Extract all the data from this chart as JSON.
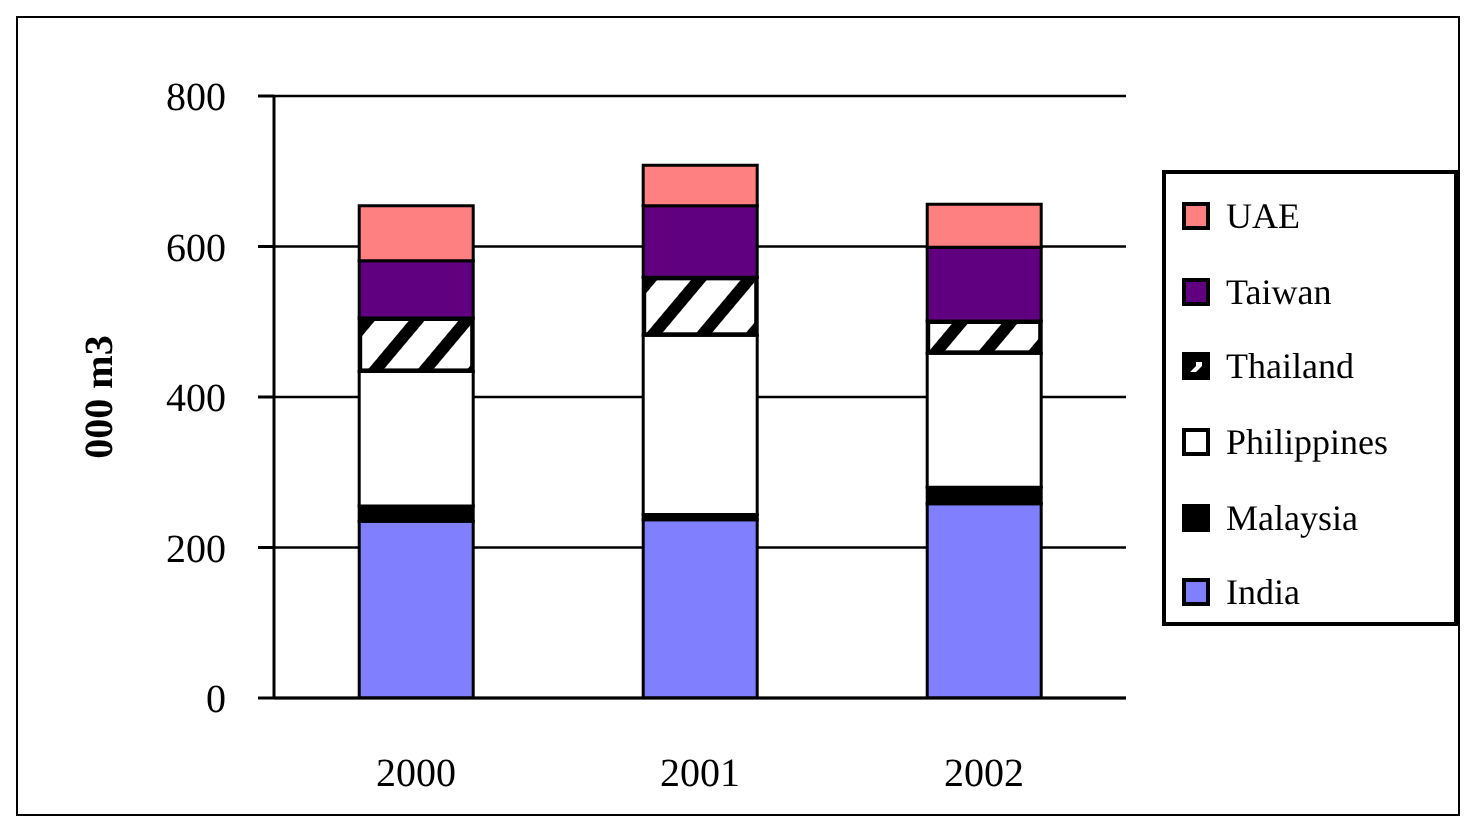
{
  "chart_data": {
    "type": "bar",
    "stacked": true,
    "categories": [
      "2000",
      "2001",
      "2002"
    ],
    "ylabel": "000 m3",
    "series": [
      {
        "name": "India",
        "color": "#8080ff",
        "values": [
          235,
          237,
          258
        ]
      },
      {
        "name": "Malaysia",
        "color": "#000000",
        "values": [
          20,
          7,
          22
        ]
      },
      {
        "name": "Philippines",
        "color": "#ffffff",
        "values": [
          179,
          238,
          178
        ]
      },
      {
        "name": "Thailand",
        "color": "#000000",
        "values": [
          71,
          77,
          43
        ]
      },
      {
        "name": "Taiwan",
        "color": "#600080",
        "values": [
          76,
          95,
          98
        ]
      },
      {
        "name": "UAE",
        "color": "#ff8080",
        "values": [
          73,
          54,
          57
        ]
      }
    ],
    "ylim": [
      0,
      800
    ],
    "yticks": [
      0,
      200,
      400,
      600,
      800
    ],
    "grid": "y",
    "legend": "right"
  }
}
